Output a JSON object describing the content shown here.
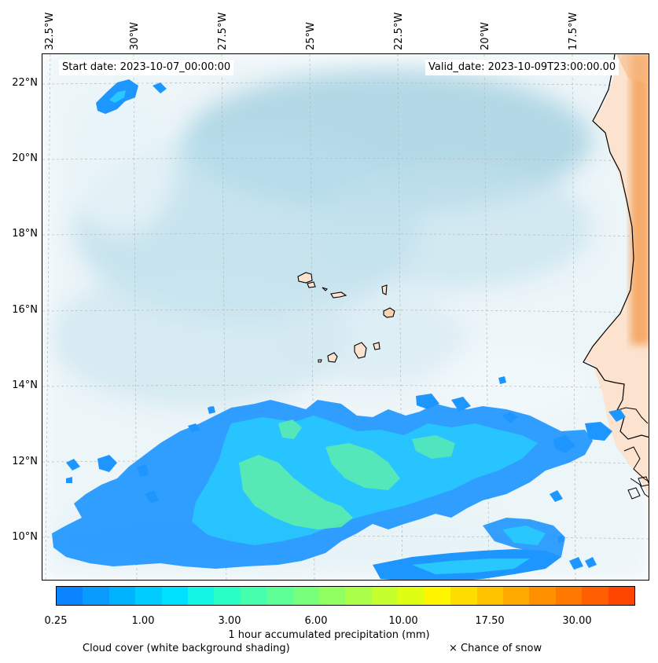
{
  "header": {
    "start_date": "Start date: 2023-10-07_00:00:00",
    "valid_date": "Valid_date: 2023-10-09T23:00:00.00"
  },
  "axes": {
    "longitude_labels": [
      "32.5°W",
      "30°W",
      "27.5°W",
      "25°W",
      "22.5°W",
      "20°W",
      "17.5°W"
    ],
    "latitude_labels": [
      "22°N",
      "20°N",
      "18°N",
      "16°N",
      "14°N",
      "12°N",
      "10°N"
    ],
    "gridlines": "dashed"
  },
  "colorbar": {
    "label": "1 hour accumulated precipitation (mm)",
    "tick_labels": [
      "0.25",
      "1.00",
      "3.00",
      "6.00",
      "10.00",
      "17.50",
      "30.00"
    ],
    "colors": [
      "#0a84ff",
      "#0a9bff",
      "#00b3ff",
      "#00ccff",
      "#00e0ff",
      "#14f5e6",
      "#2bffc8",
      "#45ffae",
      "#5eff95",
      "#78ff7b",
      "#91ff62",
      "#abff48",
      "#c5ff2e",
      "#deff14",
      "#fff500",
      "#ffdc00",
      "#ffc300",
      "#ffaa00",
      "#ff9100",
      "#ff7800",
      "#ff5f00",
      "#ff4600"
    ]
  },
  "legend": {
    "cloud_cover": "Cloud cover (white background shading)",
    "snow": "× Chance of snow"
  },
  "colors": {
    "cloud": "#a9d5e3",
    "land": "#f5a45f",
    "land_light": "#fad3b3",
    "precip_light": "#1e96ff",
    "precip_mid": "#28c8ff",
    "precip_heavy": "#5ef0a8",
    "coast": "#000000"
  }
}
